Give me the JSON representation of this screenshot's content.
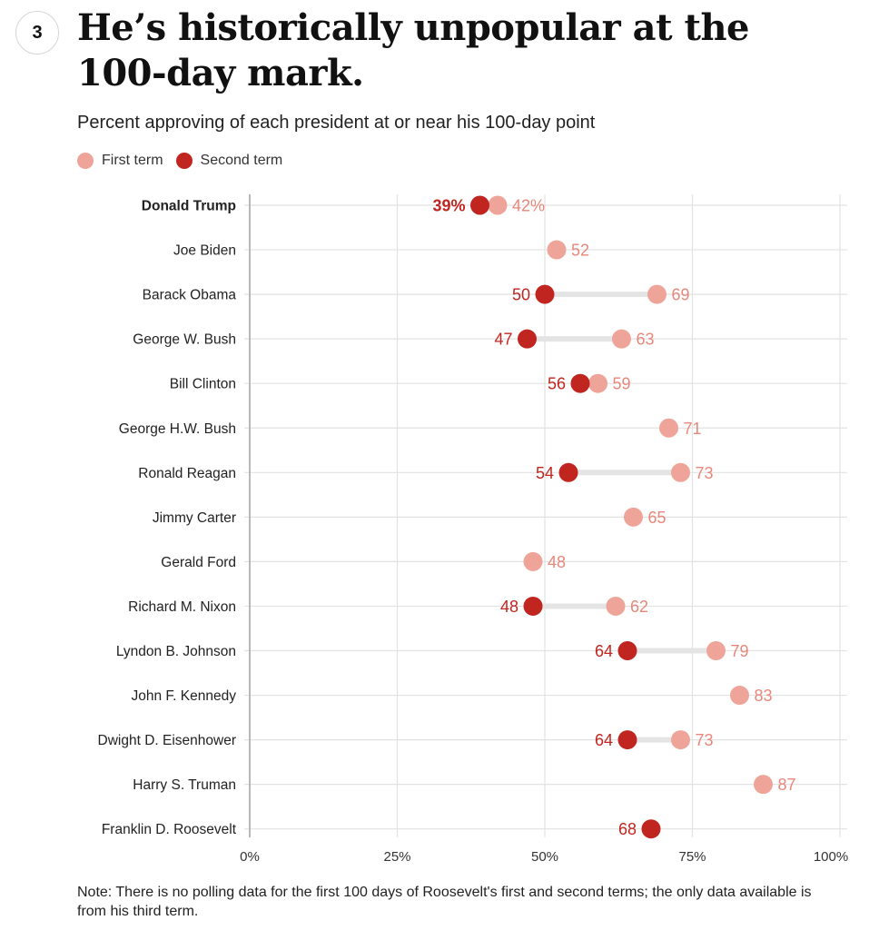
{
  "header": {
    "badge_number": "3",
    "title": "He’s historically unpopular at the 100-day mark.",
    "subtitle": "Percent approving of each president at or near his 100-day point"
  },
  "legend": {
    "items": [
      {
        "label": "First term",
        "color": "#eea498"
      },
      {
        "label": "Second term",
        "color": "#c0261f"
      }
    ]
  },
  "colors": {
    "first_term": "#eea498",
    "second_term": "#c0261f",
    "first_label": "#e8877a",
    "second_label": "#c0261f",
    "grid": "#e2e2e2",
    "connector": "#e4e4e4",
    "axis": "#b8b8b8"
  },
  "chart_data": {
    "type": "dot-plot",
    "title": "Percent approving of each president at or near his 100-day point",
    "xlabel": "",
    "ylabel": "",
    "xlim": [
      0,
      100
    ],
    "x_ticks": [
      "0%",
      "25%",
      "50%",
      "75%",
      "100%"
    ],
    "x_tick_values": [
      0,
      25,
      50,
      75,
      100
    ],
    "grid": true,
    "legend_position": "top-left",
    "series": [
      {
        "name": "First term"
      },
      {
        "name": "Second term"
      }
    ],
    "categories": [
      "Donald Trump",
      "Joe Biden",
      "Barack Obama",
      "George W. Bush",
      "Bill Clinton",
      "George H.W. Bush",
      "Ronald Reagan",
      "Jimmy Carter",
      "Gerald Ford",
      "Richard M. Nixon",
      "Lyndon B. Johnson",
      "John F. Kennedy",
      "Dwight D. Eisenhower",
      "Harry S. Truman",
      "Franklin D. Roosevelt"
    ],
    "rows": [
      {
        "name": "Donald Trump",
        "first": 42,
        "second": 39,
        "first_label": "42%",
        "second_label": "39%",
        "highlight": true
      },
      {
        "name": "Joe Biden",
        "first": 52,
        "second": null,
        "first_label": "52",
        "second_label": null,
        "highlight": false
      },
      {
        "name": "Barack Obama",
        "first": 69,
        "second": 50,
        "first_label": "69",
        "second_label": "50",
        "highlight": false
      },
      {
        "name": "George W. Bush",
        "first": 63,
        "second": 47,
        "first_label": "63",
        "second_label": "47",
        "highlight": false
      },
      {
        "name": "Bill Clinton",
        "first": 59,
        "second": 56,
        "first_label": "59",
        "second_label": "56",
        "highlight": false
      },
      {
        "name": "George H.W. Bush",
        "first": 71,
        "second": null,
        "first_label": "71",
        "second_label": null,
        "highlight": false
      },
      {
        "name": "Ronald Reagan",
        "first": 73,
        "second": 54,
        "first_label": "73",
        "second_label": "54",
        "highlight": false
      },
      {
        "name": "Jimmy Carter",
        "first": 65,
        "second": null,
        "first_label": "65",
        "second_label": null,
        "highlight": false
      },
      {
        "name": "Gerald Ford",
        "first": 48,
        "second": null,
        "first_label": "48",
        "second_label": null,
        "highlight": false
      },
      {
        "name": "Richard M. Nixon",
        "first": 62,
        "second": 48,
        "first_label": "62",
        "second_label": "48",
        "highlight": false
      },
      {
        "name": "Lyndon B. Johnson",
        "first": 79,
        "second": 64,
        "first_label": "79",
        "second_label": "64",
        "highlight": false
      },
      {
        "name": "John F. Kennedy",
        "first": 83,
        "second": null,
        "first_label": "83",
        "second_label": null,
        "highlight": false
      },
      {
        "name": "Dwight D. Eisenhower",
        "first": 73,
        "second": 64,
        "first_label": "73",
        "second_label": "64",
        "highlight": false
      },
      {
        "name": "Harry S. Truman",
        "first": 87,
        "second": null,
        "first_label": "87",
        "second_label": null,
        "highlight": false
      },
      {
        "name": "Franklin D. Roosevelt",
        "first": null,
        "second": 68,
        "first_label": null,
        "second_label": "68",
        "highlight": false
      }
    ]
  },
  "note": "Note: There is no polling data for the first 100 days of Roosevelt's first and second terms; the only data available is from his third term."
}
